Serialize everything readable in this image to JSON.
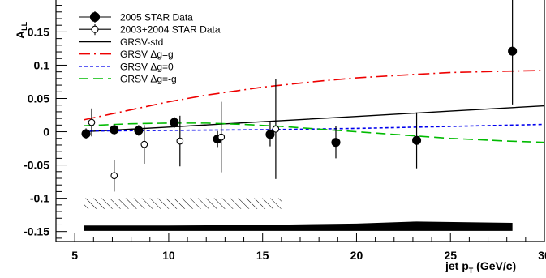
{
  "chart_data": {
    "type": "scatter",
    "xlabel_main": "jet p",
    "xlabel_sub": "T",
    "xlabel_unit": " (GeV/c)",
    "ylabel_main": "A",
    "ylabel_sub": "LL",
    "xlim": [
      4.0,
      30.0
    ],
    "ylim": [
      -0.165,
      0.198
    ],
    "x_ticks": [
      5,
      10,
      15,
      20,
      25,
      30
    ],
    "x_tick_labels": [
      "5",
      "10",
      "15",
      "20",
      "25",
      "30"
    ],
    "y_ticks": [
      -0.15,
      -0.1,
      -0.05,
      0,
      0.05,
      0.1,
      0.15
    ],
    "y_tick_labels": [
      "-0.15",
      "-0.1",
      "-0.05",
      "0",
      "0.05",
      "0.1",
      "0.15"
    ],
    "grid": false,
    "legend_position": "top-left",
    "series": [
      {
        "name": "2005 STAR Data",
        "marker": "filled-circle",
        "color": "#000000",
        "points": [
          {
            "x": 5.6,
            "y": -0.003,
            "err": 0.008
          },
          {
            "x": 7.1,
            "y": 0.003,
            "err": 0.008
          },
          {
            "x": 8.4,
            "y": 0.002,
            "err": 0.008
          },
          {
            "x": 10.3,
            "y": 0.014,
            "err": 0.008
          },
          {
            "x": 12.6,
            "y": -0.011,
            "err": 0.012
          },
          {
            "x": 15.4,
            "y": -0.004,
            "err": 0.018
          },
          {
            "x": 18.9,
            "y": -0.016,
            "err": 0.024
          },
          {
            "x": 23.2,
            "y": -0.013,
            "err": 0.042
          },
          {
            "x": 28.3,
            "y": 0.121,
            "err": 0.08
          }
        ]
      },
      {
        "name": "2003+2004 STAR Data",
        "marker": "open-circle",
        "color": "#000000",
        "points": [
          {
            "x": 5.9,
            "y": 0.014,
            "err": 0.021
          },
          {
            "x": 7.1,
            "y": -0.066,
            "err": 0.024
          },
          {
            "x": 8.7,
            "y": -0.019,
            "err": 0.029
          },
          {
            "x": 10.6,
            "y": -0.014,
            "err": 0.038
          },
          {
            "x": 12.8,
            "y": -0.008,
            "err": 0.053
          },
          {
            "x": 15.7,
            "y": 0.004,
            "err": 0.075
          }
        ]
      },
      {
        "name": "GRSV-std",
        "style": "solid",
        "color": "#000000",
        "x": [
          5.5,
          10,
          15,
          20,
          25,
          30
        ],
        "y": [
          0.0,
          0.007,
          0.015,
          0.023,
          0.031,
          0.039
        ]
      },
      {
        "name": "GRSV Δg=g",
        "style": "dash-dot",
        "color": "#ee0000",
        "x": [
          5.5,
          8,
          10,
          12,
          15,
          18,
          20,
          23,
          25,
          28,
          30
        ],
        "y": [
          0.018,
          0.033,
          0.045,
          0.055,
          0.067,
          0.076,
          0.081,
          0.086,
          0.089,
          0.091,
          0.092
        ]
      },
      {
        "name": "GRSV Δg=0",
        "style": "dotted",
        "color": "#0000ee",
        "x": [
          5.5,
          10,
          15,
          20,
          25,
          30
        ],
        "y": [
          0.001,
          0.002,
          0.003,
          0.005,
          0.008,
          0.011
        ]
      },
      {
        "name": "GRSV Δg=-g",
        "style": "dashed",
        "color": "#00bb00",
        "x": [
          5.5,
          8,
          10,
          12,
          14,
          16,
          18,
          20,
          23,
          25,
          28,
          30
        ],
        "y": [
          0.009,
          0.012,
          0.013,
          0.013,
          0.011,
          0.008,
          0.004,
          0.0,
          -0.006,
          -0.01,
          -0.014,
          -0.016
        ]
      }
    ],
    "systematic_band_2003_2004": {
      "type": "hatched",
      "x_range": [
        5.5,
        16.0
      ],
      "y_range": [
        -0.1,
        -0.116
      ]
    },
    "systematic_band_2005": {
      "type": "filled",
      "color": "#000000",
      "x": [
        5.5,
        10,
        15,
        20,
        23.2,
        28.3
      ],
      "y_top": [
        -0.141,
        -0.141,
        -0.14,
        -0.138,
        -0.135,
        -0.137
      ],
      "y_bottom": [
        -0.149,
        -0.149,
        -0.149,
        -0.149,
        -0.149,
        -0.149
      ]
    }
  }
}
